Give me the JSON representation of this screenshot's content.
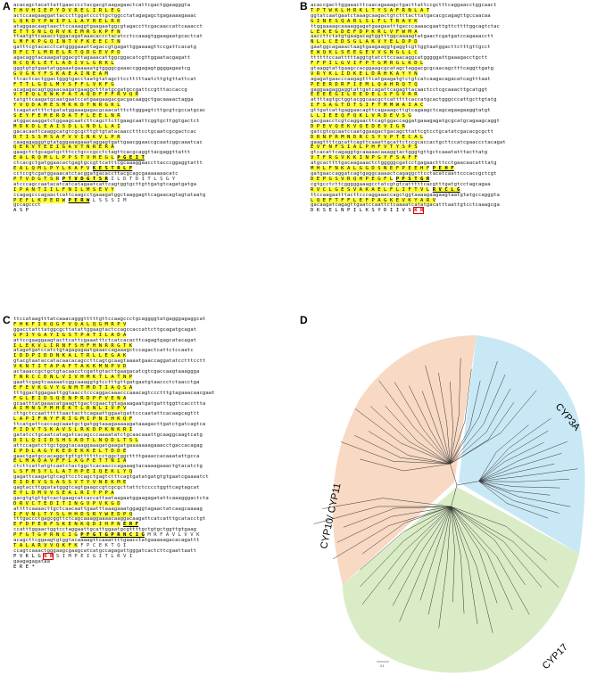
{
  "panels": {
    "A": {
      "label": "A",
      "rows": [
        {
          "dna": "acacagctacattattgaacccctacgacgtaagagaactcattcgactggaagggta",
          "aa": "T H V H I E P Y D V R E L I R L E G",
          "hl": true
        },
        {
          "dna": "actccaagaaggattacccttggatcccttgctggcctatagagagctgagaaaagaaac",
          "aa": "L Q K D Y P W I P L L A Y R E L R K",
          "hl": true
        },
        {
          "dna": "ataggaacaagtaacttccaaaggtgaagaatggcgtagaccttcgacaaccattcaaacct",
          "aa": "E T T S N L Q R V K E M R S K P F N",
          "hl": true
        },
        {
          "dna": "ttaatgttcaaacctggacagataaacaccctacatcctccaaagtggaagaatgcactcat",
          "aa": "L M F K P G Q I N T V F K E E C T N",
          "hl": true
        },
        {
          "dna": "gatttcgtacacctcatggggaaattagaccgtgagattggaaaagttccgattcacatg",
          "aa": "D F C T L M R E L R T Q D G E V P D",
          "hl": true
        },
        {
          "dna": "agacaggtacaaagatggacgttagaaacattggcggacatcgttggaatacgagatt",
          "aa": "R C Q R L E T L A D I V L G R K L",
          "hl": true
        },
        {
          "dna": "gggtgtgtgaatatggaaatgaaaaatgtggggcgaaaccggagagtggggagaatcg",
          "aa": "G V G K Y F S K A E A I N E A M",
          "hl": true
        },
        {
          "dna": "ttcactcactggactgggtgacctaatgtatagcttcctttttaatcttgtgttattcat",
          "aa": "F T T L G D L M Y S F F L V K F G",
          "hl": true
        },
        {
          "dna": "acagagacagtggaacaagatgaaggctttatgcgatgccgattccgtttaccaccg",
          "aa": "V T E Q L E W K F A T A Q D F F F R V Q R",
          "hl": true
        },
        {
          "dna": "tatgttcaagatgcaatgaatccatgaagaagacgacgacaaggctgacaaaactagga",
          "aa": "Y V Q D A M E S M K K D T N R G K L",
          "hl": true
        },
        {
          "dna": "tcagatattttctgatatggaaagagacgcaacatttcttgggagtcttgcgtcgccatgcac",
          "aa": "S E Y F E M E R D A T F L E E L N R",
          "hl": true
        },
        {
          "dna": "atggacaaggatctggaagcaatcttcagcttcttgaagcaattcggtgcttggtgactct",
          "aa": "M D K D L E A I S D L L N D L L A I",
          "hl": true
        },
        {
          "dna": "gacacaattcaaggcatgtcgcgcttgttgtatacaacctttcctgcaatcgcgactcac",
          "aa": "D T I S S M S A F V V I N K V L P R",
          "hl": true
        },
        {
          "dna": "caagagagggtgtatgggaaagaaataggagtgattgaacggaaccgcaatcggcaaatcac",
          "aa": "Q E R V Y E E I G A V T N R E R A",
          "hl": true
        },
        {
          "dna": "gaagctctgcagatgctttcctgcccgcctctagttcacgcaggttacgaggttattt",
          "aa": "E A L R Q M L L P P S T V H E G L",
          "hl": true,
          "motif": "P G E I T"
        },
        {
          "dna": "ctcacgctgatggaacactgagtgccgttcatttcgcaaaggaaccttacccggaggtattt",
          "aa": "E A L Q M L P Y L K A F V",
          "hl": true,
          "motif": "K E S T R L F"
        },
        {
          "dna": "cctccgtcgatggaaacatctacggatgacaccttacgcagcgaaaaaaacatc",
          "aa": "P T V D G T S R",
          "hl": true,
          "motif": "P T V D G T S R",
          "tail": "I L D T D I T L S G Y"
        },
        {
          "dna": "atcccagccaatacatcatcatagaatcattcagtggtgcttgttgatgtcagatgatga",
          "aa": "I P A N T I I L F N I L M S E V Y",
          "hl": true
        },
        {
          "dna": "ccagagcccagaactcattcaagcctgaaagatggctaaggagttcagaacagtagtataatg",
          "aa": "P E F L K P E R W",
          "hl": true,
          "motif": "P E R W",
          "tail": "L S S S I M"
        },
        {
          "dna": "gccagccct",
          "aa": "A S P",
          "hl": false
        }
      ]
    },
    "B": {
      "label": "B",
      "rows": [
        {
          "dna": "acaccgacttggaaacttcaacagaaagctgacttattccgctttcaggaacctggcaact",
          "aa": "T P T W K L H R K L T Y S A F R N L A T",
          "hl": true
        },
        {
          "dna": "ggtatcaatgaatctaaagcaagactgtctttacttatgacacgcagagttgccaacaa",
          "aa": "G I N E S Q A R L S L F L T R A V K",
          "hl": true
        },
        {
          "dna": "ttggaaaagcaaaaggagatgaagaatttgacccaaaacgaattgttcttttggcagtctac",
          "aa": "L E K E G D E F D P K R L V F W M A",
          "hl": true
        },
        {
          "dna": "aaccttctatgtgaagacagtggtttggcaaaagtatgaactcgatgatccagaaacctt",
          "aa": "N L L C E D S G L A K V Y E L D P D",
          "hl": true
        },
        {
          "dna": "gaatggcagaaactaagtgaagaaggtgaggtcgttggtaatggacttctttgttgcct",
          "aa": "E W Q K L S E E G E V V G N G L L C",
          "hl": true
        },
        {
          "dna": "ttttttccaatttttaggtgtatcttccaacaggcatgggggattgaaagacctgctt",
          "aa": "F F P I L G V I F P T G M R G L K D L",
          "hl": true
        },
        {
          "dna": "gtaaggtattgaagccacggaagcgcatagctaggacgcgcaacagctttcaggttgatg",
          "aa": "V R Y K L I D K E L D R H K A Y Y N",
          "hl": true
        },
        {
          "dna": "agagatgaacccaagagtttcatgaagatgtctgtcatcaagacagacatcagtttaat",
          "aa": "P E E R D R F I E M L Q A H R Q T Q",
          "hl": true
        },
        {
          "dna": "gaggaagaggaggtattgatcagattcagagttacaactcctcgcaaacttgcatggt",
          "aa": "E E E E G I L E E D E L S F S V R R",
          "hl": true
        },
        {
          "dna": "attttagtgctggtacggcaacgctcatttttcaccatgcactgggcccattgcttgtatg",
          "aa": "I F S A G T D T S I F T M M W A I A C",
          "hl": true
        },
        {
          "dna": "gttgatcattgaggaacagttcagaaagcttgtcagaagctcagcagaagaaggtatgt",
          "aa": "L L I E E Q F Q K L V R D E V S G",
          "hl": true
        },
        {
          "dna": "gacgaacctcgtcaggaacttcagtggaccaggatgaaagagatgcgcatgcagaagcaggt",
          "aa": "D P E V Q E K V Q E D E V I G R",
          "hl": true
        },
        {
          "dna": "gatcgtcgcaatccaatggaagactgacagcttattcgtcctgcatatcgacacgcgctt",
          "aa": "D R N P R M N D R C S Y V P T E C A L",
          "hl": true
        },
        {
          "dna": "gaagttttcgcattcagttcaaattgcattctccgcaccactgcttccatcgaaccctacagat",
          "aa": "E V F N F S I A L P H F V T Y S P S",
          "hl": true
        },
        {
          "dna": "gtcacattcagaggtgcaaaaacaaaggtactgggtgttgctcaaatatttacttatg",
          "aa": "V T F R G V K K I N P G Y F S A F F",
          "hl": true
        },
        {
          "dna": "atgcacttttgacaagaaactctgggggcgatcctgagaactttcctgaacaacatttatg",
          "aa": "M H L F N K A L G G D S N E F P E E H F",
          "hl": true,
          "motif": "P E H F"
        },
        {
          "dna": "gatgaaccaggatcagtgaggcaaaactcagaggcttcctacatcaattcccaccgctcgt",
          "aa": "D E P G S V R Q H P E G F L",
          "hl": true,
          "motif": "P F S T G R"
        },
        {
          "dna": "cgtgcctcttcgggggaaagcctatcgtgtcatttttcacgtttgatgtcctagcagaa",
          "aa": "R V C L G E S V A K A E L F L I F T V L",
          "hl": true,
          "motif": "R V C L G"
        },
        {
          "dna": "ttccaagaatttacttcccaggaaaccagctggtaaaagaagaagtaatgtatgccagggta",
          "aa": "L Q E F T F F L E F P A G K E V K Y A R V",
          "hl": true
        },
        {
          "dna": "gacaagatcagagttgaatccaattctcaaaatcatatgacatttaattgtcctcaaagcga",
          "aa": "D K S E L N P I L K S Y D I I V S",
          "hl": false,
          "tail_red": "K R"
        }
      ]
    },
    "C": {
      "label": "C",
      "rows": [
        {
          "dna": "ttccataagtttatcaaacagggtttttgttccaagccctgcaggggtatgagggagaggcat",
          "aa": "F H K F I K Q G F V Q A L Q G M R P V",
          "hl": true
        },
        {
          "dna": "ggacctatttatggcgcttatattggaagtactccagccaccattcttgcagatgcagat",
          "aa": "G P I Y G A Y I G S T P A T I L A D A",
          "hl": true
        },
        {
          "dna": "attccgaaggaagtacttcattcgaaatttctcatcacacttcagagtgagcatacagat",
          "aa": "I L E K V L I R N F S H F H N R R G T K",
          "hl": true
        },
        {
          "dna": "atagatgatccatctgtagagagaatgaaaccagaaagctccagactcattctccaatc",
          "aa": "I D D P I D D N K A L T R L L E G A K",
          "hl": true
        },
        {
          "dna": "gtacgtaataccatacaacacagccttcagtgcaagtaaaatgaaccaggatatcctttcctt",
          "aa": "V K N T I T A P A F T A K K M N P V D",
          "hl": true
        },
        {
          "dna": "actaaaccgctgctgtacaacctcgattgtacttgaagacatcgtcgaccaagtaaaggga",
          "aa": "T N R C C D N L V I V H M K T L A T N P",
          "hl": true
        },
        {
          "dna": "gaattcgagtcaaaaatcggcaaaggtgtcctttgttgatgaatgtaaccctctaacctga",
          "aa": "E F E V K G V Y G N M T M D T I A Q S A",
          "hl": true
        },
        {
          "dna": "tttggactggagaattggtaacctcccaggacaaacccaaacagtccctttgtagaaacaacgaat",
          "aa": "F G L E I D S Q E N P R D P F V E N A",
          "hl": true
        },
        {
          "dna": "gcaatttatgaaacatgaagttgactcgaactgtagaaagaatgatgatttggttcaccttta",
          "aa": "A I M N S F M H E K T L R N L I V P V",
          "hl": true
        },
        {
          "dna": "cttgctccaattttttaactacttcagaattggaatgattcccaatattcacaagcagttt",
          "aa": "L A P I F N Y F R I G M I P N I H K Q F",
          "hl": true
        },
        {
          "dna": "ttcatgattcaccagcaaatgctgatggtaaagaaaaagataaagacttgatctgatcagtca",
          "aa": "F I D V T S K A V S L R K D P K N K R I",
          "hl": true
        },
        {
          "dna": "gatatcctgcaatcatagatcacagcccaaaatatctgcaacaaattgcaaggcaagtcatg",
          "aa": "D I L Q I I D S H S A D T L N Q D L T S L",
          "hl": true
        },
        {
          "dna": "attccagatcttgctgggtacaaggaaagatgaagatgaaaaaaagaaacctgaccacagag",
          "aa": "I P D L A G Y K E D E K K E L T D D E",
          "hl": true
        },
        {
          "dna": "gaactgatgccacaggctgttgttttttcctggctggcttttgaaaccacaaatattgcca",
          "aa": "E L M A Q A V F F L A G F E T T N I A",
          "hl": true
        },
        {
          "dna": "ctcttcattatgtcaatctactggctcacaacccagaaagtacaaaagaaactgtacatctg",
          "aa": "L S F M S Y L L A T H P E I Q E K L Y Q",
          "hl": true
        },
        {
          "dna": "gagattcaagatgtcagttcctcagctgagtctttcagtgatatgatgtgtgaatcgaaaatct",
          "aa": "E I D E V S S A S S V T Y V N E K M E",
          "hl": true
        },
        {
          "dna": "gagtaccttggatatgggtcagtgaagccgtcgcgcttattctcccctggttcagtagcat",
          "aa": "E Y L D M V V S E A L R I Y P P A",
          "hl": true
        },
        {
          "dna": "gacgtgtgttgtcactgaagcatcaccattaataagaatggaagagatattcaaagggactcta",
          "aa": "D R V C T E D I T I N G V P V K G D",
          "hl": true
        },
        {
          "dna": "attttcaaaacttgctcaacaattgaatttaaagaaatggaggtagaactatcaagcaaaag",
          "aa": "I F V N L T Y S L H H D S R Y W E D P Q",
          "hl": true
        },
        {
          "dna": "tttgaccctgagcggttctcagcaaaggaaaacaaggacaagattcatcatttgcatacctgt",
          "aa": "E F D P E R F S K E N K Q D I H P N",
          "hl": true,
          "motif": "E R F"
        },
        {
          "dna": "ccatttggaactggtcctaggaattgcattggaatgcgttttgctgtgctggttgtgaag",
          "aa": "P F G T G P R N C I G",
          "hl": true,
          "motif": "P F G T G P R N C I G",
          "tail": "M R F A V L V V K"
        },
        {
          "dna": "acagcttcggaagtgtggtacaaaagttcaaattttgaacctatgaaaaagacacagattt",
          "aa": "T A L A R V V Q K F K",
          "hl": true,
          "tail": "F P C E K T Q I"
        },
        {
          "dna": "ccagtcaaactgggaagcgaagcatcatgccagagattgggatcactcttcgaattaatt",
          "aa": "P V K L G",
          "hl": false,
          "tail_red": "K R",
          "tail": "S I M P E I G I T L R V I"
        },
        {
          "dna": "gaagagagataa",
          "aa": "E R E *",
          "hl": false
        }
      ]
    },
    "D": {
      "label": "D",
      "clades": {
        "left": "CYP10/ CYP11",
        "right": "CYP3A",
        "bottom": "CYP17"
      },
      "clade_colors": {
        "left": "#f7d9c4",
        "right": "#c8e8f5",
        "bottom": "#d9ecc6"
      },
      "scale_label": "0.1"
    }
  }
}
